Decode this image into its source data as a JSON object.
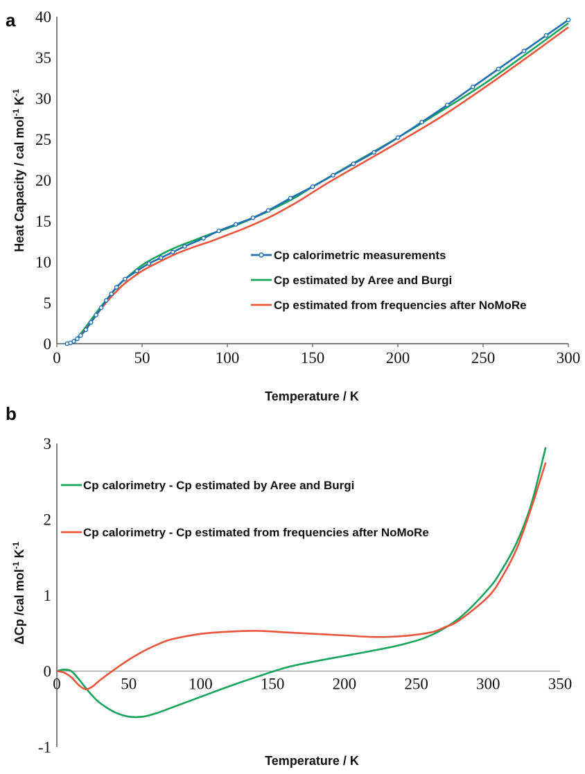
{
  "colors": {
    "blue": "#1f6fb2",
    "green": "#16a35a",
    "red": "#e8553b",
    "axis": "#555555"
  },
  "chart_data": [
    {
      "type": "line",
      "panel_label": "a",
      "xlabel": "Temperature / K",
      "ylabel": "Heat Capacity / cal mol-1 K-1",
      "xlim": [
        0,
        300
      ],
      "ylim": [
        0,
        40
      ],
      "xticks": [
        "0",
        "50",
        "100",
        "150",
        "200",
        "250",
        "300"
      ],
      "yticks": [
        "0",
        "5",
        "10",
        "15",
        "20",
        "25",
        "30",
        "35",
        "40"
      ],
      "legend_position": "center-right",
      "series": [
        {
          "name": "Cp calorimetric measurements",
          "color": "#1f6fb2",
          "markers": true,
          "x": [
            6,
            8,
            10,
            12,
            14,
            17,
            20,
            23,
            26,
            29,
            32,
            35,
            40,
            47,
            54,
            61,
            68,
            75,
            86,
            95,
            105,
            115,
            124,
            137,
            150,
            162,
            174,
            186,
            200,
            214,
            229,
            244,
            259,
            274,
            287,
            300
          ],
          "y": [
            0.0,
            0.1,
            0.3,
            0.6,
            1.0,
            1.7,
            2.6,
            3.5,
            4.4,
            5.3,
            6.1,
            6.9,
            7.9,
            8.9,
            9.8,
            10.5,
            11.2,
            11.9,
            12.9,
            13.8,
            14.6,
            15.4,
            16.3,
            17.8,
            19.2,
            20.6,
            22.0,
            23.4,
            25.2,
            27.1,
            29.2,
            31.4,
            33.6,
            35.8,
            37.7,
            39.6
          ]
        },
        {
          "name": "Cp estimated by Aree and Burgi",
          "color": "#16a35a",
          "markers": false,
          "x": [
            6,
            10,
            15,
            20,
            25,
            30,
            35,
            40,
            50,
            60,
            70,
            80,
            90,
            100,
            110,
            125,
            140,
            150,
            160,
            175,
            200,
            225,
            250,
            275,
            300
          ],
          "y": [
            0.0,
            0.3,
            1.5,
            2.9,
            4.3,
            5.6,
            6.9,
            7.9,
            9.6,
            10.8,
            11.8,
            12.6,
            13.4,
            14.1,
            14.9,
            16.3,
            17.9,
            19.2,
            20.4,
            22.2,
            25.2,
            28.4,
            31.7,
            35.4,
            39.2
          ]
        },
        {
          "name": "Cp estimated from frequencies after NoMoRe",
          "color": "#e8553b",
          "markers": false,
          "x": [
            6,
            10,
            15,
            20,
            25,
            30,
            35,
            40,
            50,
            60,
            70,
            80,
            90,
            100,
            110,
            125,
            140,
            150,
            160,
            175,
            200,
            225,
            250,
            275,
            300
          ],
          "y": [
            0.0,
            0.3,
            1.3,
            2.6,
            4.0,
            5.3,
            6.4,
            7.4,
            8.9,
            10.0,
            11.0,
            11.8,
            12.5,
            13.3,
            14.1,
            15.5,
            17.2,
            18.5,
            19.8,
            21.6,
            24.6,
            27.7,
            31.2,
            34.9,
            38.7
          ]
        }
      ]
    },
    {
      "type": "line",
      "panel_label": "b",
      "xlabel": "Temperature / K",
      "ylabel": "ΔCp /cal mol-1 K-1",
      "xlim": [
        0,
        350
      ],
      "ylim": [
        -1,
        3
      ],
      "xticks": [
        "0",
        "50",
        "100",
        "150",
        "200",
        "250",
        "300",
        "350"
      ],
      "yticks": [
        "-1",
        "0",
        "1",
        "2",
        "3"
      ],
      "legend_position": "top-left",
      "series": [
        {
          "name": "Cp calorimetry - Cp estimated by Aree and Burgi",
          "color": "#16a35a",
          "x": [
            0,
            5,
            10,
            15,
            20,
            25,
            30,
            40,
            50,
            60,
            70,
            80,
            100,
            120,
            140,
            160,
            180,
            200,
            220,
            240,
            260,
            280,
            300,
            310,
            320,
            330,
            340
          ],
          "y": [
            0.0,
            0.02,
            0.0,
            -0.1,
            -0.22,
            -0.33,
            -0.42,
            -0.54,
            -0.6,
            -0.6,
            -0.55,
            -0.48,
            -0.34,
            -0.2,
            -0.07,
            0.05,
            0.13,
            0.2,
            0.27,
            0.35,
            0.47,
            0.7,
            1.08,
            1.35,
            1.7,
            2.2,
            2.95
          ]
        },
        {
          "name": "Cp calorimetry - Cp estimated from frequencies after NoMoRe",
          "color": "#e8553b",
          "x": [
            0,
            5,
            10,
            15,
            20,
            25,
            30,
            40,
            50,
            60,
            70,
            80,
            100,
            120,
            140,
            160,
            180,
            200,
            220,
            240,
            260,
            270,
            280,
            300,
            310,
            320,
            330,
            340
          ],
          "y": [
            0.0,
            -0.02,
            -0.08,
            -0.18,
            -0.24,
            -0.2,
            -0.12,
            0.02,
            0.15,
            0.26,
            0.35,
            0.42,
            0.49,
            0.52,
            0.53,
            0.51,
            0.49,
            0.47,
            0.45,
            0.46,
            0.51,
            0.58,
            0.67,
            0.98,
            1.25,
            1.62,
            2.15,
            2.75
          ]
        }
      ]
    }
  ]
}
